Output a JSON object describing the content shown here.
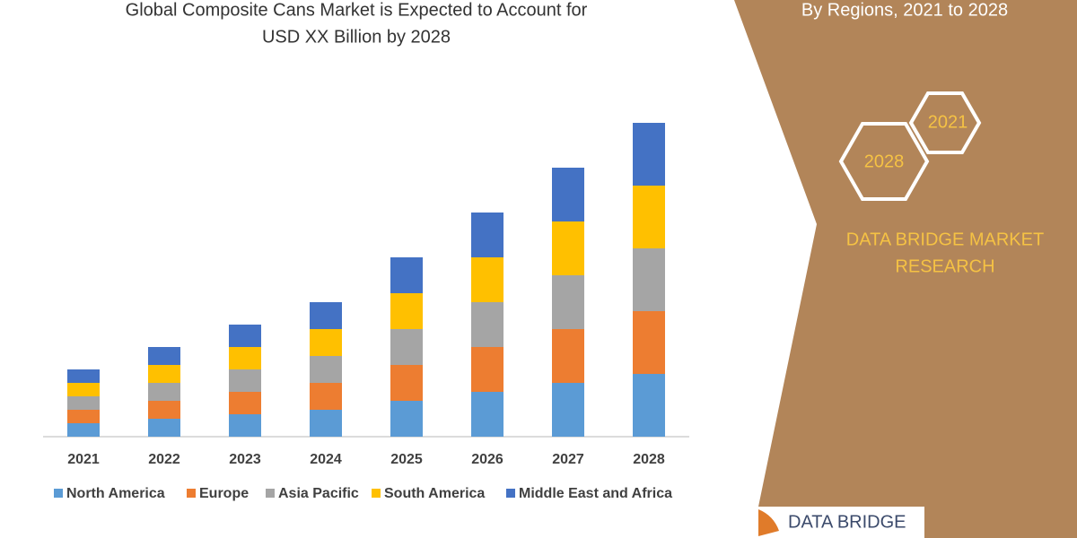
{
  "chart_data": {
    "type": "stacked-bar",
    "title": [
      "Global Composite Cans Market is Expected to Account for",
      "USD XX Billion by 2028"
    ],
    "categories": [
      "2021",
      "2022",
      "2023",
      "2024",
      "2025",
      "2026",
      "2027",
      "2028"
    ],
    "series": [
      {
        "name": "North America",
        "color": "#5b9bd5",
        "values": [
          1.5,
          2.0,
          2.5,
          3.0,
          4.0,
          5.0,
          6.0,
          7.0
        ]
      },
      {
        "name": "Europe",
        "color": "#ed7d31",
        "values": [
          1.5,
          2.0,
          2.5,
          3.0,
          4.0,
          5.0,
          6.0,
          7.0
        ]
      },
      {
        "name": "Asia Pacific",
        "color": "#a5a5a5",
        "values": [
          1.5,
          2.0,
          2.5,
          3.0,
          4.0,
          5.0,
          6.0,
          7.0
        ]
      },
      {
        "name": "South America",
        "color": "#ffc000",
        "values": [
          1.5,
          2.0,
          2.5,
          3.0,
          4.0,
          5.0,
          6.0,
          7.0
        ]
      },
      {
        "name": "Middle East and Africa",
        "color": "#4472c4",
        "values": [
          1.5,
          2.0,
          2.5,
          3.0,
          4.0,
          5.0,
          6.0,
          7.0
        ]
      }
    ],
    "legend": "bottom"
  },
  "panel": {
    "heading": "By Regions, 2021 to 2028",
    "hexagons": [
      "2021",
      "2028"
    ],
    "brand": [
      "DATA BRIDGE MARKET",
      "RESEARCH"
    ],
    "logo": "DATA BRIDGE"
  }
}
